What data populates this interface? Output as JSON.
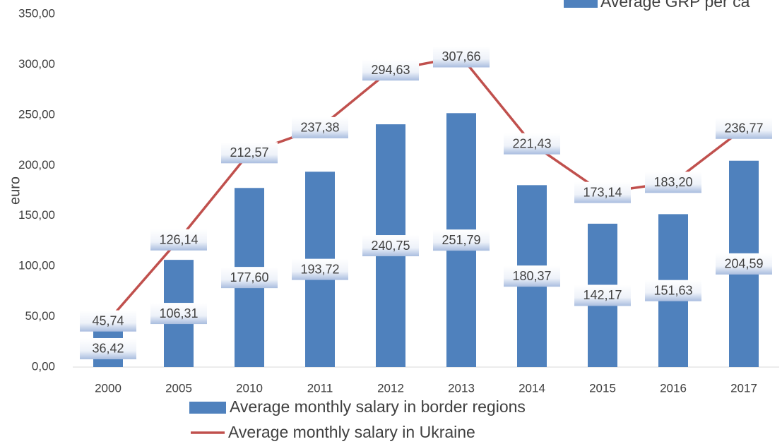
{
  "chart_data": {
    "type": "bar_line",
    "y_axis_label": "euro",
    "categories": [
      "2000",
      "2005",
      "2010",
      "2011",
      "2012",
      "2013",
      "2014",
      "2015",
      "2016",
      "2017"
    ],
    "series": [
      {
        "name": "Average monthly salary in border regions",
        "type": "bar",
        "color": "#4f81bd",
        "values": [
          36.42,
          106.31,
          177.6,
          193.72,
          240.75,
          251.79,
          180.37,
          142.17,
          151.63,
          204.59
        ],
        "value_labels": [
          "36,42",
          "106,31",
          "177,60",
          "193,72",
          "240,75",
          "251,79",
          "180,37",
          "142,17",
          "151,63",
          "204,59"
        ]
      },
      {
        "name": "Average monthly salary in Ukraine",
        "type": "line",
        "color": "#c0504d",
        "values": [
          45.74,
          126.14,
          212.57,
          237.38,
          294.63,
          307.66,
          221.43,
          173.14,
          183.2,
          236.77
        ],
        "value_labels": [
          "45,74",
          "126,14",
          "212,57",
          "237,38",
          "294,63",
          "307,66",
          "221,43",
          "173,14",
          "183,20",
          "236,77"
        ]
      }
    ],
    "cropped_legend": {
      "name": "Average GRP per ca",
      "color": "#4f81bd"
    },
    "ylim": [
      0,
      350
    ],
    "yticks": [
      {
        "value": 0,
        "label": "0,00"
      },
      {
        "value": 50,
        "label": "50,00"
      },
      {
        "value": 100,
        "label": "100,00"
      },
      {
        "value": 150,
        "label": "150,00"
      },
      {
        "value": 200,
        "label": "200,00"
      },
      {
        "value": 250,
        "label": "250,00"
      },
      {
        "value": 300,
        "label": "300,00"
      },
      {
        "value": 350,
        "label": "350,00"
      }
    ],
    "grid": false
  }
}
